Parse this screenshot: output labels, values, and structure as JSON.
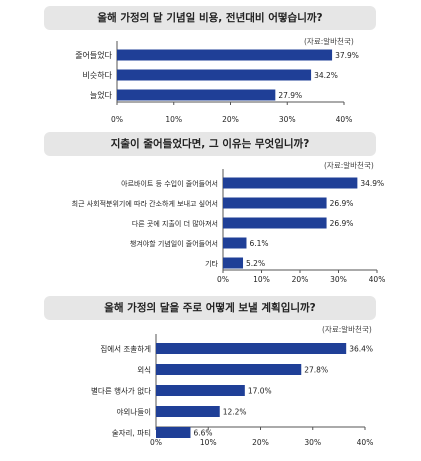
{
  "colors": {
    "bar": "#1f3f97",
    "title_bg": "#e6e6e6",
    "axis": "#555555"
  },
  "chart_data": [
    {
      "type": "bar",
      "orientation": "horizontal",
      "title": "올해 가정의 달 기념일 비용, 전년대비 어떻습니까?",
      "source": "(자료:알바천국)",
      "categories": [
        "줄어들었다",
        "비슷하다",
        "늘었다"
      ],
      "values": [
        37.9,
        34.2,
        27.9
      ],
      "value_labels": [
        "37.9%",
        "34.2%",
        "27.9%"
      ],
      "xlim": [
        0,
        40
      ],
      "ticks": [
        "0%",
        "10%",
        "20%",
        "30%",
        "40%"
      ]
    },
    {
      "type": "bar",
      "orientation": "horizontal",
      "title": "지출이 줄어들었다면, 그 이유는 무엇입니까?",
      "source": "(자료:알바천국)",
      "categories": [
        "아르바이트 등 수입이 줄어들어서",
        "최근 사회적분위기에 따라 간소하게 보내고 싶어서",
        "다른 곳에 지출이 더 많아져서",
        "챙겨야할 기념일이 줄어들어서",
        "기타"
      ],
      "values": [
        34.9,
        26.9,
        26.9,
        6.1,
        5.2
      ],
      "value_labels": [
        "34.9%",
        "26.9%",
        "26.9%",
        "6.1%",
        "5.2%"
      ],
      "xlim": [
        0,
        40
      ],
      "ticks": [
        "0%",
        "10%",
        "20%",
        "30%",
        "40%"
      ]
    },
    {
      "type": "bar",
      "orientation": "horizontal",
      "title": "올해 가정의 달을 주로 어떻게 보낼 계획입니까?",
      "source": "(자료:알바천국)",
      "categories": [
        "집에서 조촐하게",
        "외식",
        "별다른 행사가 없다",
        "야외나들이",
        "술자리, 파티"
      ],
      "values": [
        36.4,
        27.8,
        17.0,
        12.2,
        6.6
      ],
      "value_labels": [
        "36.4%",
        "27.8%",
        "17.0%",
        "12.2%",
        "6.6%"
      ],
      "xlim": [
        0,
        40
      ],
      "ticks": [
        "0%",
        "10%",
        "20%",
        "30%",
        "40%"
      ]
    }
  ]
}
